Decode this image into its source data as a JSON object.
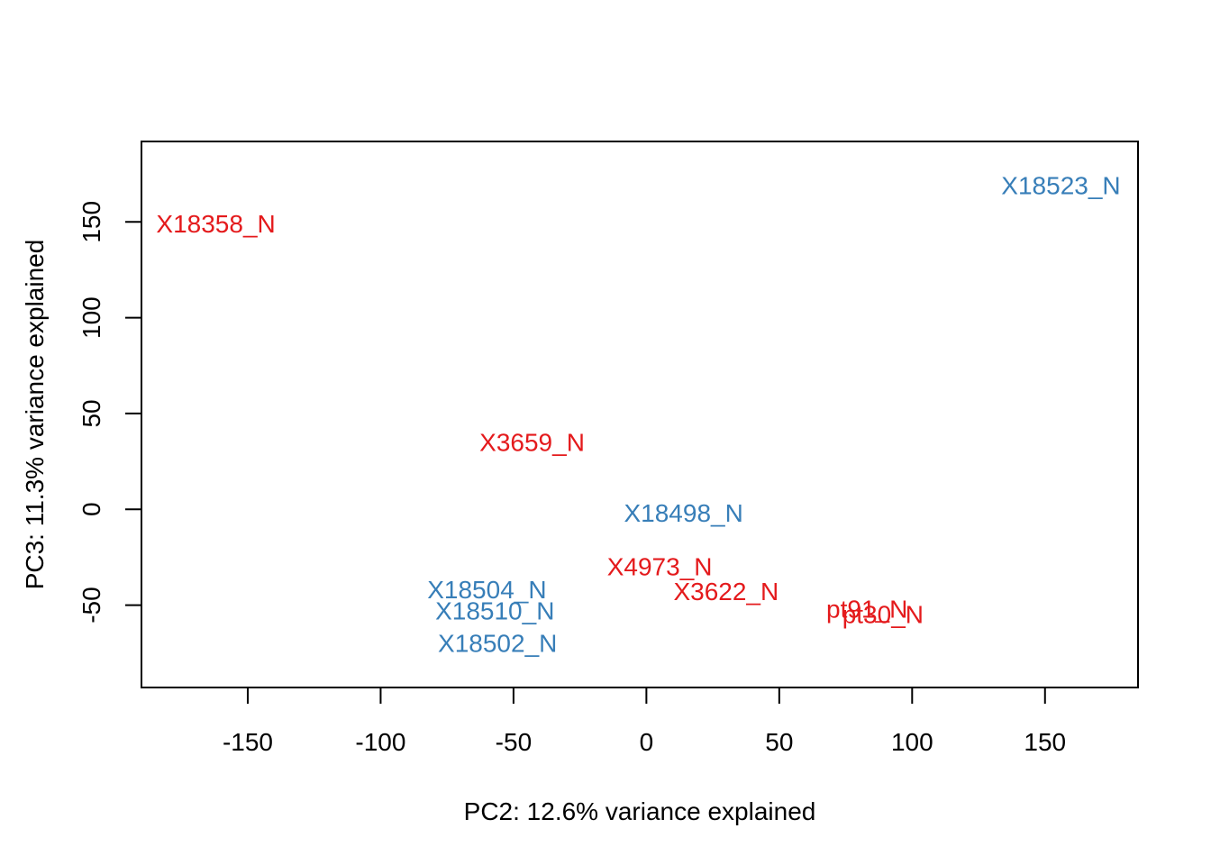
{
  "chart_data": {
    "type": "scatter",
    "xlabel": "PC2: 12.6% variance explained",
    "ylabel": "PC3: 11.3% variance explained",
    "xlim": [
      -190,
      185
    ],
    "ylim": [
      -93,
      192
    ],
    "xticks": [
      -150,
      -100,
      -50,
      0,
      50,
      100,
      150
    ],
    "yticks": [
      -50,
      0,
      50,
      100,
      150
    ],
    "grid": false,
    "legend": "none",
    "colors": {
      "group_red": "#e41a1c",
      "group_blue": "#377eb8"
    },
    "points": [
      {
        "label": "X18358_N",
        "x": -162,
        "y": 149,
        "color": "#e41a1c"
      },
      {
        "label": "X18523_N",
        "x": 156,
        "y": 169,
        "color": "#377eb8"
      },
      {
        "label": "X3659_N",
        "x": -43,
        "y": 35,
        "color": "#e41a1c"
      },
      {
        "label": "X18498_N",
        "x": 14,
        "y": -2,
        "color": "#377eb8"
      },
      {
        "label": "X4973_N",
        "x": 5,
        "y": -30,
        "color": "#e41a1c"
      },
      {
        "label": "X3622_N",
        "x": 30,
        "y": -43,
        "color": "#e41a1c"
      },
      {
        "label": "X18504_N",
        "x": -60,
        "y": -42,
        "color": "#377eb8"
      },
      {
        "label": "X18510_N",
        "x": -57,
        "y": -53,
        "color": "#377eb8"
      },
      {
        "label": "X18502_N",
        "x": -56,
        "y": -70,
        "color": "#377eb8"
      },
      {
        "label": "pt91_N",
        "x": 83,
        "y": -52,
        "color": "#e41a1c"
      },
      {
        "label": "pt30_N",
        "x": 89,
        "y": -55,
        "color": "#e41a1c"
      }
    ]
  }
}
